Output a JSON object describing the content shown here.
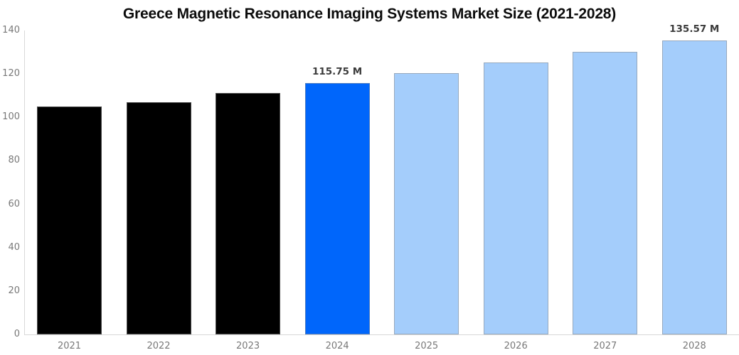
{
  "chart_data": {
    "type": "bar",
    "title": "Greece Magnetic Resonance Imaging Systems Market Size (2021-2028)",
    "xlabel": "",
    "ylabel": "",
    "categories": [
      "2021",
      "2022",
      "2023",
      "2024",
      "2025",
      "2026",
      "2027",
      "2028"
    ],
    "values": [
      105.0,
      107.1,
      111.3,
      115.75,
      120.4,
      125.3,
      130.3,
      135.57
    ],
    "unit": "M",
    "ylim": [
      0,
      140
    ],
    "yticks": [
      0,
      20,
      40,
      60,
      80,
      100,
      120,
      140
    ],
    "grid": false,
    "legend": null,
    "bar_colors": [
      "#000000",
      "#000000",
      "#000000",
      "#0066fb",
      "#a4cdfb",
      "#a4cdfb",
      "#a4cdfb",
      "#a4cdfb"
    ],
    "annotations": [
      {
        "category": "2024",
        "text": "115.75 M"
      },
      {
        "category": "2028",
        "text": "135.57 M"
      }
    ]
  },
  "colors": {
    "historical_bar": "#000000",
    "highlight_bar": "#0066fb",
    "forecast_bar": "#a4cdfb",
    "axis_line": "#d8d8d8",
    "tick_label": "#787878",
    "value_label": "#3b3b3b",
    "title": "#0c0c0c",
    "background": "#ffffff"
  }
}
